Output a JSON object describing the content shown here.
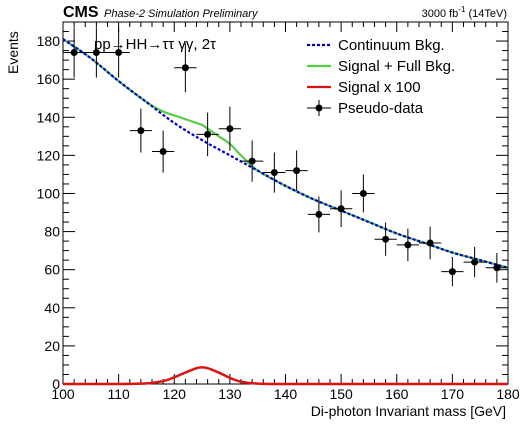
{
  "header": {
    "experiment": "CMS",
    "status": "Phase-2 Simulation Preliminary",
    "lumi_value": "3000 fb",
    "lumi_exp": "-1",
    "lumi_energy": " (14TeV)"
  },
  "process_label": "pp→HH→ττ γγ, 2τ",
  "legend": [
    {
      "label": "Continuum Bkg.",
      "style": "dashed",
      "color": "#0000cc"
    },
    {
      "label": "Signal + Full Bkg.",
      "style": "line",
      "color": "#55cc44"
    },
    {
      "label": "Signal x 100",
      "style": "line",
      "color": "#dd1111"
    },
    {
      "label": "Pseudo-data",
      "style": "marker",
      "color": "#000000"
    }
  ],
  "chart_data": {
    "type": "scatter",
    "xlabel": "Di-photon Invariant mass [GeV]",
    "ylabel": "Events",
    "xlim": [
      100,
      180
    ],
    "ylim": [
      0,
      190
    ],
    "xticks": [
      100,
      110,
      120,
      130,
      140,
      150,
      160,
      170,
      180
    ],
    "yticks": [
      0,
      20,
      40,
      60,
      80,
      100,
      120,
      140,
      160,
      180
    ],
    "bin_width": 4,
    "pseudo_data": {
      "x": [
        102,
        106,
        110,
        114,
        118,
        122,
        126,
        130,
        134,
        138,
        142,
        146,
        150,
        154,
        158,
        162,
        166,
        170,
        174,
        178
      ],
      "y": [
        174,
        174,
        174,
        133,
        122,
        166,
        131,
        134,
        117,
        111,
        112,
        89,
        92,
        100,
        76,
        73,
        74,
        59,
        64,
        61
      ]
    },
    "continuum_bkg": {
      "x": [
        100,
        105,
        110,
        115,
        120,
        125,
        130,
        135,
        140,
        145,
        150,
        155,
        160,
        165,
        170,
        175,
        180
      ],
      "y": [
        181,
        171,
        159,
        148,
        137,
        128,
        120,
        112,
        104,
        97,
        91,
        85,
        79,
        74,
        69,
        65,
        61
      ]
    },
    "signal_plus_full_bkg": {
      "x": [
        100,
        105,
        110,
        115,
        118,
        120,
        122,
        124,
        125,
        126,
        128,
        130,
        132,
        135,
        140,
        145,
        150,
        155,
        160,
        165,
        170,
        175,
        180
      ],
      "y": [
        181,
        171,
        159,
        148,
        143,
        141,
        139,
        137,
        136,
        134,
        130,
        126,
        120,
        112,
        104,
        97,
        91,
        85,
        79,
        74,
        69,
        65,
        61
      ]
    },
    "signal_x100": {
      "x": [
        100,
        110,
        115,
        118,
        120,
        122,
        124,
        125,
        126,
        128,
        130,
        132,
        135,
        140,
        150,
        180
      ],
      "y": [
        0,
        0,
        0.3,
        1.5,
        3.5,
        6.0,
        8.3,
        8.7,
        8.3,
        6.0,
        3.2,
        1.2,
        0.2,
        0,
        0,
        0
      ]
    }
  }
}
